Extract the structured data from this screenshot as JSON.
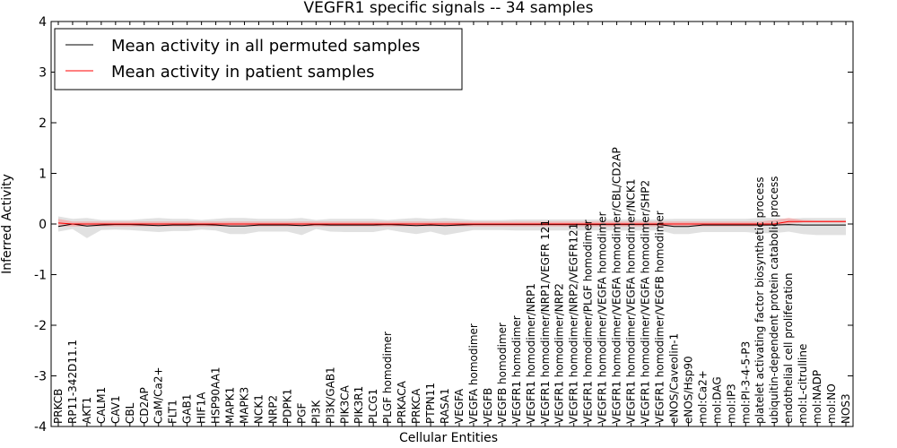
{
  "chart_data": {
    "type": "line",
    "title": "VEGFR1 specific signals -- 34 samples",
    "xlabel": "Cellular Entities",
    "ylabel": "Inferred Activity",
    "ylim": [
      -4,
      4
    ],
    "yticks": [
      -4,
      -3,
      -2,
      -1,
      0,
      1,
      2,
      3,
      4
    ],
    "legend_position": "top-left",
    "grid": false,
    "categories": [
      "PRKCB",
      "RP11-342D11.1",
      "AKT1",
      "CALM1",
      "CAV1",
      "CBL",
      "CD2AP",
      "CaM/Ca2+",
      "FLT1",
      "GAB1",
      "HIF1A",
      "HSP90AA1",
      "MAPK1",
      "MAPK3",
      "NCK1",
      "NRP2",
      "PDPK1",
      "PGF",
      "PI3K",
      "PI3K/GAB1",
      "PIK3CA",
      "PIK3R1",
      "PLCG1",
      "PLGF homodimer",
      "PRKACA",
      "PRKCA",
      "PTPN11",
      "RASA1",
      "VEGFA",
      "VEGFA homodimer",
      "VEGFB",
      "VEGFB homodimer",
      "VEGFR1 homodimer",
      "VEGFR1 homodimer/NRP1",
      "VEGFR1 homodimer/NRP1/VEGFR 121",
      "VEGFR1 homodimer/NRP2",
      "VEGFR1 homodimer/NRP2/VEGFR121",
      "VEGFR1 homodimer/PLGF homodimer",
      "VEGFR1 homodimer/VEGFA homodimer",
      "VEGFR1 homodimer/VEGFA homodimer/CBL/CD2AP",
      "VEGFR1 homodimer/VEGFA homodimer/NCK1",
      "VEGFR1 homodimer/VEGFA homodimer/SHP2",
      "VEGFR1 homodimer/VEGFB homodimer",
      "eNOS/Caveolin-1",
      "eNOS/Hsp90",
      "mol:Ca2+",
      "mol:DAG",
      "mol:IP3",
      "mol:PI-3-4-5-P3",
      "platelet activating factor biosynthetic process",
      "ubiquitin-dependent protein catabolic process",
      "endothelial cell proliferation",
      "mol:L-citrulline",
      "mol:NADP",
      "mol:NO",
      "NOS3"
    ],
    "series": [
      {
        "name": "Mean activity in all permuted samples",
        "color": "#000000",
        "values": [
          -0.05,
          0.0,
          -0.04,
          -0.02,
          -0.01,
          -0.01,
          -0.02,
          -0.03,
          -0.02,
          -0.02,
          -0.01,
          -0.02,
          -0.04,
          -0.04,
          -0.02,
          -0.02,
          -0.02,
          -0.03,
          -0.01,
          -0.02,
          -0.02,
          -0.02,
          -0.02,
          -0.01,
          -0.02,
          -0.03,
          -0.02,
          -0.03,
          -0.02,
          -0.01,
          -0.01,
          -0.01,
          -0.01,
          -0.01,
          -0.01,
          -0.01,
          -0.01,
          -0.01,
          -0.01,
          -0.01,
          -0.01,
          -0.01,
          -0.01,
          -0.05,
          -0.05,
          -0.02,
          -0.02,
          -0.02,
          -0.02,
          -0.02,
          -0.02,
          -0.01,
          -0.02,
          -0.02,
          -0.02,
          -0.02
        ],
        "band_low": [
          -0.15,
          -0.1,
          -0.28,
          -0.12,
          -0.11,
          -0.12,
          -0.14,
          -0.16,
          -0.14,
          -0.14,
          -0.11,
          -0.13,
          -0.2,
          -0.2,
          -0.15,
          -0.15,
          -0.15,
          -0.22,
          -0.1,
          -0.15,
          -0.16,
          -0.16,
          -0.16,
          -0.11,
          -0.16,
          -0.2,
          -0.15,
          -0.22,
          -0.17,
          -0.12,
          -0.12,
          -0.12,
          -0.13,
          -0.13,
          -0.13,
          -0.13,
          -0.13,
          -0.13,
          -0.13,
          -0.13,
          -0.13,
          -0.13,
          -0.13,
          -0.2,
          -0.2,
          -0.16,
          -0.16,
          -0.16,
          -0.16,
          -0.18,
          -0.18,
          -0.15,
          -0.2,
          -0.22,
          -0.22,
          -0.22
        ],
        "band_high": [
          0.15,
          0.1,
          0.12,
          0.08,
          0.08,
          0.08,
          0.1,
          0.12,
          0.1,
          0.1,
          0.08,
          0.1,
          0.12,
          0.12,
          0.1,
          0.1,
          0.1,
          0.12,
          0.08,
          0.1,
          0.1,
          0.1,
          0.1,
          0.08,
          0.1,
          0.12,
          0.1,
          0.12,
          0.1,
          0.08,
          0.08,
          0.08,
          0.09,
          0.09,
          0.09,
          0.09,
          0.09,
          0.09,
          0.09,
          0.09,
          0.09,
          0.09,
          0.09,
          0.1,
          0.1,
          0.1,
          0.1,
          0.1,
          0.1,
          0.12,
          0.12,
          0.1,
          0.12,
          0.12,
          0.12,
          0.12
        ],
        "band_color": "#d9d9d9"
      },
      {
        "name": "Mean activity in patient samples",
        "color": "#ff0000",
        "values": [
          0.02,
          0.0,
          0.0,
          0.0,
          0.0,
          0.0,
          0.0,
          0.0,
          0.0,
          0.0,
          0.0,
          0.0,
          0.0,
          0.0,
          0.0,
          0.0,
          0.0,
          0.0,
          0.0,
          0.0,
          0.0,
          0.0,
          0.0,
          0.0,
          0.0,
          0.0,
          0.0,
          0.0,
          0.0,
          0.0,
          0.0,
          0.0,
          0.0,
          0.0,
          0.0,
          0.0,
          0.0,
          0.0,
          0.0,
          0.0,
          0.0,
          0.0,
          0.0,
          0.0,
          0.0,
          0.0,
          0.0,
          0.0,
          0.0,
          0.0,
          0.0,
          0.05,
          0.05,
          0.05,
          0.05,
          0.05
        ],
        "band_low": [
          -0.05,
          -0.05,
          -0.05,
          -0.05,
          -0.05,
          -0.05,
          -0.05,
          -0.05,
          -0.05,
          -0.05,
          -0.05,
          -0.05,
          -0.05,
          -0.05,
          -0.05,
          -0.05,
          -0.05,
          -0.05,
          -0.05,
          -0.05,
          -0.05,
          -0.05,
          -0.05,
          -0.05,
          -0.05,
          -0.05,
          -0.05,
          -0.05,
          -0.05,
          -0.05,
          -0.05,
          -0.05,
          -0.05,
          -0.05,
          -0.05,
          -0.05,
          -0.05,
          -0.05,
          -0.05,
          -0.05,
          -0.05,
          -0.05,
          -0.05,
          -0.05,
          -0.05,
          -0.05,
          -0.05,
          -0.05,
          -0.05,
          -0.05,
          -0.02,
          0.0,
          0.03,
          0.03,
          0.03,
          0.03
        ],
        "band_high": [
          0.1,
          0.05,
          0.05,
          0.05,
          0.05,
          0.05,
          0.05,
          0.05,
          0.05,
          0.05,
          0.05,
          0.05,
          0.05,
          0.05,
          0.05,
          0.05,
          0.05,
          0.05,
          0.05,
          0.05,
          0.05,
          0.05,
          0.05,
          0.05,
          0.05,
          0.05,
          0.05,
          0.05,
          0.05,
          0.05,
          0.05,
          0.05,
          0.05,
          0.05,
          0.05,
          0.05,
          0.05,
          0.05,
          0.05,
          0.05,
          0.05,
          0.05,
          0.05,
          0.05,
          0.05,
          0.05,
          0.05,
          0.05,
          0.05,
          0.05,
          0.08,
          0.12,
          0.08,
          0.07,
          0.07,
          0.07
        ],
        "band_color": "#f4a3a3"
      }
    ]
  }
}
